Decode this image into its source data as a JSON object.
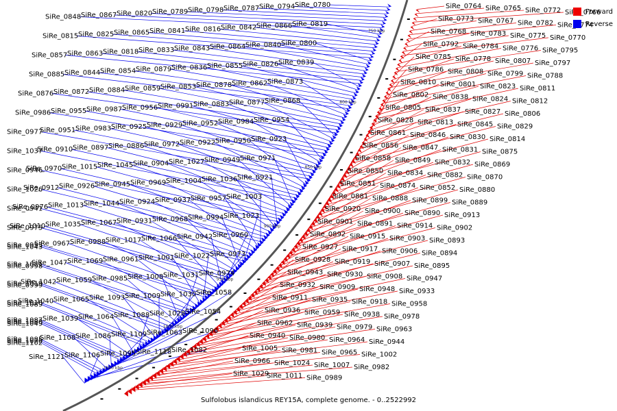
{
  "colors": {
    "forward": "#e00000",
    "reverse": "#0000ee",
    "backbone": "#555555"
  },
  "legend": [
    {
      "label": "Forward",
      "color": "#ee0000"
    },
    {
      "label": "Reverse",
      "color": "#0000ee"
    }
  ],
  "caption": "Sulfolobus islandicus REY15A, complete genome. - 0..2522992",
  "ticks": [
    "750 kbp",
    "800 kbp",
    "850 kbp",
    "900 kbp",
    "950 kbp",
    "1000 kbp",
    "1050 kbp"
  ],
  "reverse_labels": [
    "SiRe_0780",
    "SiRe_0794",
    "SiRe_0787",
    "SiRe_0798",
    "SiRe_0789",
    "SiRe_0820",
    "SiRe_0867",
    "SiRe_0848",
    "SiRe_0819",
    "SiRe_0866",
    "SiRe_0842",
    "SiRe_0816",
    "SiRe_0841",
    "SiRe_0865",
    "SiRe_0825",
    "SiRe_0815",
    "SiRe_0800",
    "SiRe_0840",
    "SiRe_0864",
    "SiRe_0843",
    "SiRe_0833",
    "SiRe_0818",
    "SiRe_0863",
    "SiRe_0857",
    "SiRe_0839",
    "SiRe_0826",
    "SiRe_0855",
    "SiRe_0836",
    "SiRe_0879",
    "SiRe_0854",
    "SiRe_0844",
    "SiRe_0885",
    "SiRe_0873",
    "SiRe_0862",
    "SiRe_0878",
    "SiRe_0853",
    "SiRe_0859",
    "SiRe_0884",
    "SiRe_0872",
    "SiRe_0876",
    "SiRe_0868",
    "SiRe_0877",
    "SiRe_0883",
    "SiRe_0991",
    "SiRe_0956",
    "SiRe_0987",
    "SiRe_0955",
    "SiRe_0986",
    "SiRe_0954",
    "SiRe_0984",
    "SiRe_0952",
    "SiRe_0929",
    "SiRe_0925",
    "SiRe_0983",
    "SiRe_0951",
    "SiRe_0977",
    "SiRe_0923",
    "SiRe_0950",
    "SiRe_0922",
    "SiRe_0972",
    "SiRe_0886",
    "SiRe_0897",
    "SiRe_0910",
    "SiRe_1037",
    "SiRe_0971",
    "SiRe_0949",
    "SiRe_1027",
    "SiRe_0904",
    "SiRe_1045",
    "SiRe_1015",
    "SiRe_0970",
    "SiRe_0946",
    "SiRe_0921",
    "SiRe_1036",
    "SiRe_1004",
    "SiRe_0969",
    "SiRe_0945",
    "SiRe_0926",
    "SiRe_0912",
    "SiRe_1026",
    "SiRe_1003",
    "SiRe_0957",
    "SiRe_0937",
    "SiRe_0924",
    "SiRe_1044",
    "SiRe_1013",
    "SiRe_0976",
    "SiRe_0941",
    "SiRe_1023",
    "SiRe_0994",
    "SiRe_0968",
    "SiRe_0931",
    "SiRe_1067",
    "SiRe_1035",
    "SiRe_1010",
    "SiRe_0975",
    "SiRe_0960",
    "SiRe_0942",
    "SiRe_1066",
    "SiRe_1017",
    "SiRe_0988",
    "SiRe_0967",
    "SiRe_0953",
    "SiRe_1043",
    "SiRe_0973",
    "SiRe_1022",
    "SiRe_1001",
    "SiRe_0961",
    "SiRe_1069",
    "SiRe_1047",
    "SiRe_1021",
    "SiRe_0998",
    "SiRe_0974",
    "SiRe_1031",
    "SiRe_1008",
    "SiRe_0985",
    "SiRe_1059",
    "SiRe_1042",
    "SiRe_1019",
    "SiRe_0999",
    "SiRe_1058",
    "SiRe_1030",
    "SiRe_1009",
    "SiRe_1093",
    "SiRe_1065",
    "SiRe_1040",
    "SiRe_1018",
    "SiRe_1089",
    "SiRe_1054",
    "SiRe_1028",
    "SiRe_1088",
    "SiRe_1064",
    "SiRe_1039",
    "SiRe_1087",
    "SiRe_1080",
    "SiRe_1049",
    "SiRe_1096",
    "SiRe_1063",
    "SiRe_1109",
    "SiRe_1086",
    "SiRe_1108",
    "SiRe_1085",
    "SiRe_1070",
    "SiRe_1102",
    "SiRe_1082",
    "SiRe_1118",
    "SiRe_1095",
    "SiRe_1106",
    "SiRe_1121"
  ],
  "forward_labels": [
    "SiRe_0764",
    "SiRe_0765",
    "SiRe_0772",
    "SiRe_0766",
    "SiRe_0773",
    "SiRe_0767",
    "SiRe_0782",
    "SiRe_0774",
    "SiRe_0768",
    "SiRe_0783",
    "SiRe_0775",
    "SiRe_0770",
    "SiRe_0792",
    "SiRe_0784",
    "SiRe_0776",
    "SiRe_0795",
    "SiRe_0785",
    "SiRe_0778",
    "SiRe_0807",
    "SiRe_0797",
    "SiRe_0786",
    "SiRe_0808",
    "SiRe_0799",
    "SiRe_0788",
    "SiRe_0810",
    "SiRe_0801",
    "SiRe_0823",
    "SiRe_0811",
    "SiRe_0802",
    "SiRe_0838",
    "SiRe_0824",
    "SiRe_0812",
    "SiRe_0805",
    "SiRe_0837",
    "SiRe_0827",
    "SiRe_0806",
    "SiRe_0828",
    "SiRe_0813",
    "SiRe_0845",
    "SiRe_0829",
    "SiRe_0861",
    "SiRe_0846",
    "SiRe_0830",
    "SiRe_0814",
    "SiRe_0856",
    "SiRe_0847",
    "SiRe_0831",
    "SiRe_0875",
    "SiRe_0858",
    "SiRe_0849",
    "SiRe_0832",
    "SiRe_0869",
    "SiRe_0850",
    "SiRe_0834",
    "SiRe_0882",
    "SiRe_0870",
    "SiRe_0851",
    "SiRe_0874",
    "SiRe_0852",
    "SiRe_0880",
    "SiRe_0881",
    "SiRe_0888",
    "SiRe_0899",
    "SiRe_0889",
    "SiRe_0920",
    "SiRe_0900",
    "SiRe_0890",
    "SiRe_0913",
    "SiRe_0901",
    "SiRe_0891",
    "SiRe_0914",
    "SiRe_0902",
    "SiRe_0892",
    "SiRe_0915",
    "SiRe_0903",
    "SiRe_0893",
    "SiRe_0927",
    "SiRe_0917",
    "SiRe_0906",
    "SiRe_0894",
    "SiRe_0928",
    "SiRe_0919",
    "SiRe_0907",
    "SiRe_0895",
    "SiRe_0943",
    "SiRe_0930",
    "SiRe_0908",
    "SiRe_0947",
    "SiRe_0932",
    "SiRe_0909",
    "SiRe_0948",
    "SiRe_0933",
    "SiRe_0911",
    "SiRe_0935",
    "SiRe_0918",
    "SiRe_0958",
    "SiRe_0936",
    "SiRe_0959",
    "SiRe_0938",
    "SiRe_0978",
    "SiRe_0962",
    "SiRe_0939",
    "SiRe_0979",
    "SiRe_0963",
    "SiRe_0940",
    "SiRe_0980",
    "SiRe_0964",
    "SiRe_0944",
    "SiRe_1005",
    "SiRe_0981",
    "SiRe_0965",
    "SiRe_1002",
    "SiRe_0966",
    "SiRe_1024",
    "SiRe_1007",
    "SiRe_0982",
    "SiRe_1029",
    "SiRe_1011",
    "SiRe_0989"
  ]
}
